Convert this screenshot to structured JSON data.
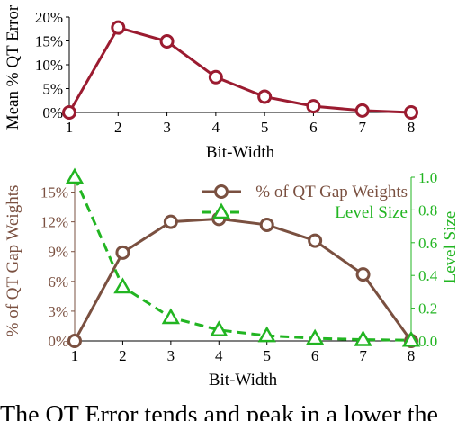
{
  "chart_data": [
    {
      "type": "line",
      "title": "",
      "xlabel": "Bit-Width",
      "ylabel": "Mean % QT Error",
      "x": [
        1,
        2,
        3,
        4,
        5,
        6,
        7,
        8
      ],
      "xlim": [
        1,
        8
      ],
      "ylim": [
        0,
        20
      ],
      "yticks": [
        "0%",
        "5%",
        "10%",
        "15%",
        "20%"
      ],
      "xticks": [
        "1",
        "2",
        "3",
        "4",
        "5",
        "6",
        "7",
        "8"
      ],
      "grid": false,
      "series": [
        {
          "name": "",
          "values": [
            0,
            17.8,
            14.9,
            7.4,
            3.3,
            1.3,
            0.4,
            0.0
          ],
          "color": "#9b1b30",
          "marker": "circle"
        }
      ]
    },
    {
      "type": "line",
      "title": "",
      "xlabel": "Bit-Width",
      "ylabel": "% of QT Gap Weights",
      "y2label": "Level Size",
      "x": [
        1,
        2,
        3,
        4,
        5,
        6,
        7,
        8
      ],
      "xlim": [
        1,
        8
      ],
      "ylim": [
        0,
        16.5
      ],
      "y2lim": [
        0,
        1.0
      ],
      "yticks": [
        "0%",
        "3%",
        "6%",
        "9%",
        "12%",
        "15%"
      ],
      "y2ticks": [
        "0.0",
        "0.2",
        "0.4",
        "0.6",
        "0.8",
        "1.0"
      ],
      "xticks": [
        "1",
        "2",
        "3",
        "4",
        "5",
        "6",
        "7",
        "8"
      ],
      "grid": false,
      "legend": "top-right",
      "series": [
        {
          "name": "% of QT Gap Weights",
          "axis": "left",
          "values": [
            0,
            8.9,
            12.0,
            12.3,
            11.7,
            10.1,
            6.7,
            0.0
          ],
          "color": "#7a5040",
          "marker": "circle",
          "style": "solid"
        },
        {
          "name": "Level Size",
          "axis": "right",
          "values": [
            1.0,
            0.33,
            0.143,
            0.067,
            0.032,
            0.016,
            0.008,
            0.004
          ],
          "color": "#22b522",
          "marker": "triangle",
          "style": "dashed"
        }
      ]
    }
  ],
  "caption_fragment": "The QT Error tends and peak in a lower the"
}
